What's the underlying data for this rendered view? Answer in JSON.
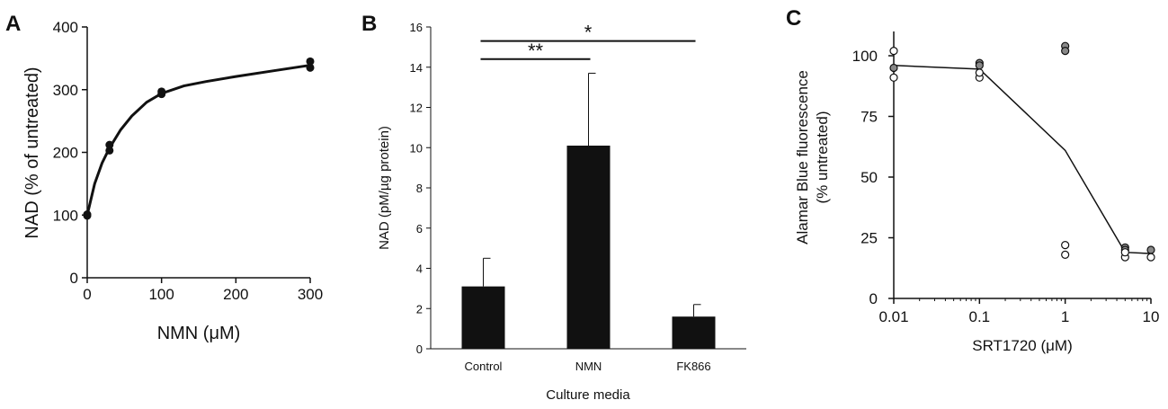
{
  "colors": {
    "ink": "#111111",
    "bar": "#111111",
    "point_gray": "#888888",
    "point_white": "#ffffff"
  },
  "chart_data": [
    {
      "panel": "A",
      "type": "scatter",
      "xlabel": "NMN (μM)",
      "ylabel": "NAD (% of untreated)",
      "xlim": [
        0,
        300
      ],
      "ylim": [
        0,
        400
      ],
      "xticks": [
        0,
        100,
        200,
        300
      ],
      "yticks": [
        0,
        100,
        200,
        300,
        400
      ],
      "grid": false,
      "points": [
        [
          0,
          99
        ],
        [
          0,
          101
        ],
        [
          30,
          203
        ],
        [
          30,
          212
        ],
        [
          100,
          293
        ],
        [
          100,
          297
        ],
        [
          300,
          335
        ],
        [
          300,
          345
        ]
      ],
      "fit_curve": [
        [
          0,
          100
        ],
        [
          10,
          150
        ],
        [
          20,
          183
        ],
        [
          30,
          207
        ],
        [
          45,
          236
        ],
        [
          60,
          258
        ],
        [
          80,
          280
        ],
        [
          100,
          294
        ],
        [
          130,
          306
        ],
        [
          160,
          313
        ],
        [
          200,
          321
        ],
        [
          250,
          330
        ],
        [
          300,
          339
        ]
      ]
    },
    {
      "panel": "B",
      "type": "bar",
      "categories": [
        "Control",
        "NMN",
        "FK866"
      ],
      "values": [
        3.1,
        10.1,
        1.6
      ],
      "errors": [
        1.4,
        3.6,
        0.6
      ],
      "xlabel": "Culture media",
      "ylabel": "NAD (pM/µg protein)",
      "ylim": [
        0,
        16
      ],
      "yticks": [
        0,
        2,
        4,
        6,
        8,
        10,
        12,
        14,
        16
      ],
      "grid": false,
      "annotations": [
        {
          "label": "**",
          "from": "Control",
          "to": "NMN",
          "level": 14.4
        },
        {
          "label": "*",
          "from": "Control",
          "to": "FK866",
          "level": 15.3
        }
      ]
    },
    {
      "panel": "C",
      "type": "scatter",
      "xscale": "log",
      "xlabel": "SRT1720 (μM)",
      "ylabel": "Alamar Blue fluorescence",
      "ylabel2": "(% untreated)",
      "xlim": [
        0.01,
        10
      ],
      "ylim": [
        0,
        110
      ],
      "xticks": [
        0.01,
        0.1,
        1,
        10
      ],
      "xtick_labels": [
        "0.01",
        "0.1",
        "1",
        "10"
      ],
      "yticks": [
        0,
        25,
        50,
        75,
        100
      ],
      "grid": false,
      "points_gray": [
        [
          0.01,
          95
        ],
        [
          0.1,
          97
        ],
        [
          0.1,
          96
        ],
        [
          1,
          104
        ],
        [
          1,
          102
        ],
        [
          5,
          21
        ],
        [
          5,
          20
        ],
        [
          10,
          20
        ]
      ],
      "points_white": [
        [
          0.01,
          102
        ],
        [
          0.01,
          91
        ],
        [
          0.1,
          91
        ],
        [
          0.1,
          93
        ],
        [
          1,
          22
        ],
        [
          1,
          18
        ],
        [
          5,
          17
        ],
        [
          5,
          19
        ],
        [
          10,
          17
        ]
      ],
      "mean_line": [
        [
          0.01,
          96
        ],
        [
          0.1,
          94.5
        ],
        [
          1,
          61
        ],
        [
          5,
          19
        ],
        [
          10,
          18.5
        ]
      ]
    }
  ]
}
